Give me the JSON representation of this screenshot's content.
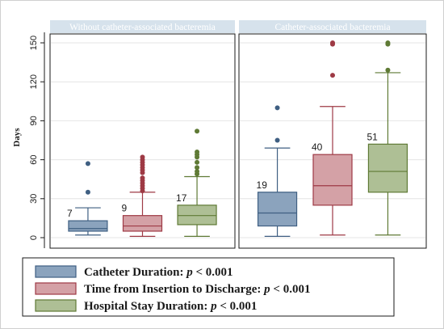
{
  "chart_data": {
    "type": "box",
    "ylabel": "Days",
    "ylim": [
      0,
      155
    ],
    "yticks": [
      0,
      30,
      60,
      90,
      120,
      150
    ],
    "grid": true,
    "legend_position": "bottom",
    "series": [
      {
        "name": "Catheter Duration: ",
        "p_label": "p",
        "p_value": " < 0.001",
        "fill": "#8ba3bd",
        "stroke": "#3f5f82"
      },
      {
        "name": "Time from Insertion to Discharge: ",
        "p_label": "p",
        "p_value": " < 0.001",
        "fill": "#d4a1a6",
        "stroke": "#9e3a45"
      },
      {
        "name": "Hospital Stay Duration: ",
        "p_label": "p",
        "p_value": " < 0.001",
        "fill": "#aebf95",
        "stroke": "#5f7a35"
      }
    ],
    "panels": [
      {
        "title": "Without catheter-associated bacteremia",
        "boxes": [
          {
            "series": 0,
            "whisker_low": 2,
            "q1": 5,
            "median": 7,
            "q3": 13,
            "whisker_high": 23,
            "median_label": "7",
            "outliers": [
              35,
              57
            ]
          },
          {
            "series": 1,
            "whisker_low": 1,
            "q1": 5,
            "median": 9,
            "q3": 17,
            "whisker_high": 35,
            "median_label": "9",
            "outliers": [
              36,
              38,
              40,
              42,
              44,
              46,
              50,
              52,
              54,
              56,
              58,
              60,
              62
            ]
          },
          {
            "series": 2,
            "whisker_low": 1,
            "q1": 10,
            "median": 17,
            "q3": 25,
            "whisker_high": 47,
            "median_label": "17",
            "outliers": [
              49,
              51,
              54,
              58,
              62,
              64,
              66,
              82
            ]
          }
        ]
      },
      {
        "title": "Catheter-associated bacteremia",
        "boxes": [
          {
            "series": 0,
            "whisker_low": 1,
            "q1": 9,
            "median": 19,
            "q3": 35,
            "whisker_high": 69,
            "median_label": "19",
            "outliers": [
              75,
              100
            ]
          },
          {
            "series": 1,
            "whisker_low": 2,
            "q1": 25,
            "median": 40,
            "q3": 64,
            "whisker_high": 101,
            "median_label": "40",
            "outliers": [
              125,
              149,
              150
            ]
          },
          {
            "series": 2,
            "whisker_low": 2,
            "q1": 35,
            "median": 51,
            "q3": 72,
            "whisker_high": 127,
            "median_label": "51",
            "outliers": [
              129,
              149,
              150
            ]
          }
        ]
      }
    ]
  },
  "colors": {
    "panel_header": "#d6e2ec",
    "gridline": "#e4e4e4",
    "axis": "#1a1a1a"
  }
}
